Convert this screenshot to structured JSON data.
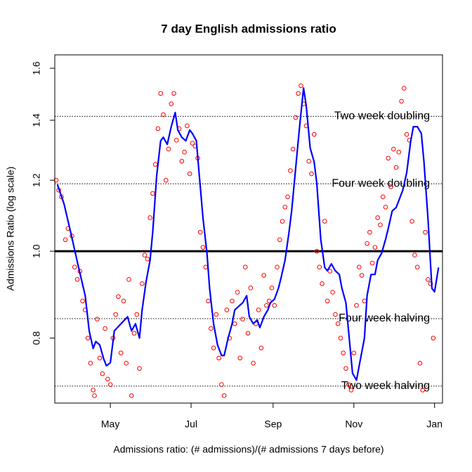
{
  "chart_data": {
    "type": "line",
    "title": "7 day English admissions ratio",
    "x_label": "Admissions ratio: (# admissions)/(# admissions 7 days before)",
    "y_label": "Admissions Ratio (log scale)",
    "log_y": true,
    "xlim": [
      -42,
      251
    ],
    "ylim": [
      0.677,
      1.656
    ],
    "xticks": [
      {
        "value": 0,
        "label": "May"
      },
      {
        "value": 61,
        "label": "Jul"
      },
      {
        "value": 123,
        "label": "Sep"
      },
      {
        "value": 184,
        "label": "Nov"
      },
      {
        "value": 245,
        "label": "Jan"
      }
    ],
    "yticks": [
      0.8,
      {
        "value": 1,
        "label": "1.0"
      },
      1.2,
      1.4,
      1.6
    ],
    "reference_lines": [
      {
        "value": 1.4142,
        "label": "Two week doubling"
      },
      {
        "value": 1.1892,
        "label": "Four week doubling"
      },
      {
        "value": 0.8409,
        "label": "Four week halving"
      },
      {
        "value": 0.7071,
        "label": "Two week halving"
      }
    ],
    "baseline": 1,
    "series": [
      {
        "type": "scatter",
        "color": "#ff0000",
        "x": [
          -41,
          -39,
          -37,
          -34,
          -32,
          -29,
          -27,
          -25,
          -23,
          -21,
          -19,
          -17,
          -15,
          -13,
          -12,
          -10,
          -8,
          -6,
          -4,
          -2,
          0,
          2,
          4,
          6,
          8,
          10,
          12,
          14,
          16,
          18,
          20,
          22,
          24,
          26,
          28,
          30,
          32,
          34,
          36,
          38,
          40,
          42,
          44,
          46,
          48,
          50,
          52,
          54,
          56,
          58,
          60,
          62,
          64,
          66,
          68,
          70,
          72,
          74,
          76,
          78,
          80,
          82,
          84,
          86,
          88,
          90,
          92,
          94,
          96,
          98,
          100,
          102,
          104,
          106,
          108,
          110,
          112,
          114,
          116,
          118,
          120,
          122,
          124,
          126,
          128,
          130,
          132,
          134,
          136,
          138,
          140,
          142,
          144,
          146,
          148,
          150,
          152,
          154,
          156,
          158,
          160,
          162,
          164,
          166,
          168,
          170,
          172,
          174,
          176,
          178,
          180,
          182,
          184,
          186,
          188,
          190,
          192,
          194,
          196,
          198,
          200,
          202,
          204,
          206,
          208,
          210,
          212,
          214,
          216,
          218,
          220,
          222,
          224,
          226,
          228,
          230,
          232,
          234,
          236,
          238,
          240,
          242,
          244
        ],
        "values": [
          1.2,
          1.17,
          1.15,
          1.03,
          1.06,
          1.04,
          0.96,
          0.93,
          0.95,
          0.88,
          0.86,
          0.8,
          0.75,
          0.7,
          0.69,
          0.84,
          0.76,
          0.73,
          0.82,
          0.72,
          0.71,
          0.8,
          0.85,
          0.89,
          0.77,
          0.88,
          0.75,
          0.93,
          0.69,
          0.81,
          0.85,
          0.74,
          0.92,
          0.99,
          0.98,
          1.09,
          1.16,
          1.25,
          1.37,
          1.5,
          1.42,
          1.2,
          1.3,
          1.46,
          1.5,
          1.33,
          1.37,
          1.26,
          1.29,
          1.38,
          1.22,
          1.32,
          1.31,
          1.27,
          1.05,
          1.01,
          0.96,
          0.88,
          0.82,
          0.78,
          0.85,
          0.76,
          0.71,
          0.69,
          0.86,
          0.8,
          0.88,
          0.83,
          0.9,
          0.76,
          0.84,
          0.96,
          0.81,
          0.91,
          0.75,
          0.83,
          0.86,
          0.78,
          0.94,
          0.87,
          0.88,
          0.91,
          0.87,
          0.96,
          1.03,
          1.08,
          1.12,
          1.15,
          1.23,
          1.3,
          1.41,
          1.5,
          1.53,
          1.46,
          1.38,
          1.26,
          1.22,
          1.35,
          1.0,
          0.96,
          0.92,
          1.08,
          0.88,
          0.95,
          0.9,
          0.85,
          0.83,
          0.8,
          0.77,
          0.74,
          0.71,
          0.7,
          0.77,
          0.87,
          0.96,
          0.94,
          0.88,
          1.02,
          1.05,
          0.97,
          1.01,
          1.09,
          1.07,
          1.15,
          1.12,
          1.27,
          1.18,
          1.3,
          1.24,
          1.29,
          1.47,
          1.52,
          1.35,
          1.33,
          1.08,
          0.99,
          0.96,
          0.75,
          0.7,
          1.05,
          0.93,
          0.92,
          0.8
        ]
      },
      {
        "type": "line",
        "color": "#0000ff",
        "x": [
          -40,
          -35,
          -30,
          -24,
          -19,
          -16,
          -13,
          -11,
          -8,
          -5,
          -3,
          0,
          3,
          8,
          13,
          16,
          19,
          22,
          24,
          27,
          30,
          32,
          35,
          38,
          40,
          43,
          46,
          49,
          51,
          54,
          57,
          60,
          62,
          65,
          67,
          70,
          73,
          75,
          78,
          81,
          84,
          86,
          89,
          92,
          94,
          97,
          100,
          103,
          105,
          108,
          111,
          113,
          116,
          119,
          121,
          124,
          127,
          129,
          132,
          135,
          137,
          140,
          143,
          146,
          148,
          151,
          154,
          156,
          159,
          162,
          164,
          167,
          170,
          173,
          175,
          178,
          180,
          183,
          186,
          189,
          192,
          194,
          197,
          200,
          202,
          205,
          208,
          210,
          213,
          216,
          219,
          221,
          224,
          227,
          229,
          232,
          235,
          237,
          240,
          243,
          245,
          248
        ],
        "values": [
          1.187,
          1.129,
          1.05,
          0.959,
          0.892,
          0.815,
          0.779,
          0.793,
          0.786,
          0.758,
          0.745,
          0.751,
          0.815,
          0.83,
          0.845,
          0.815,
          0.83,
          0.8,
          0.86,
          0.925,
          0.977,
          1.05,
          1.214,
          1.328,
          1.34,
          1.316,
          1.377,
          1.428,
          1.365,
          1.34,
          1.328,
          1.365,
          1.353,
          1.328,
          1.225,
          1.089,
          0.995,
          0.909,
          0.83,
          0.786,
          0.765,
          0.765,
          0.8,
          0.83,
          0.86,
          0.868,
          0.876,
          0.892,
          0.845,
          0.83,
          0.838,
          0.822,
          0.845,
          0.86,
          0.876,
          0.884,
          0.909,
          0.934,
          0.977,
          1.05,
          1.109,
          1.236,
          1.377,
          1.521,
          1.454,
          1.304,
          1.258,
          1.191,
          1.031,
          0.959,
          0.951,
          0.968,
          0.951,
          0.942,
          0.909,
          0.876,
          0.815,
          0.731,
          0.718,
          0.758,
          0.8,
          0.892,
          0.942,
          0.942,
          0.977,
          0.995,
          1.031,
          1.06,
          1.109,
          1.119,
          1.149,
          1.17,
          1.225,
          1.328,
          1.377,
          1.377,
          1.353,
          1.258,
          1.089,
          0.909,
          0.901,
          0.959
        ]
      }
    ]
  }
}
